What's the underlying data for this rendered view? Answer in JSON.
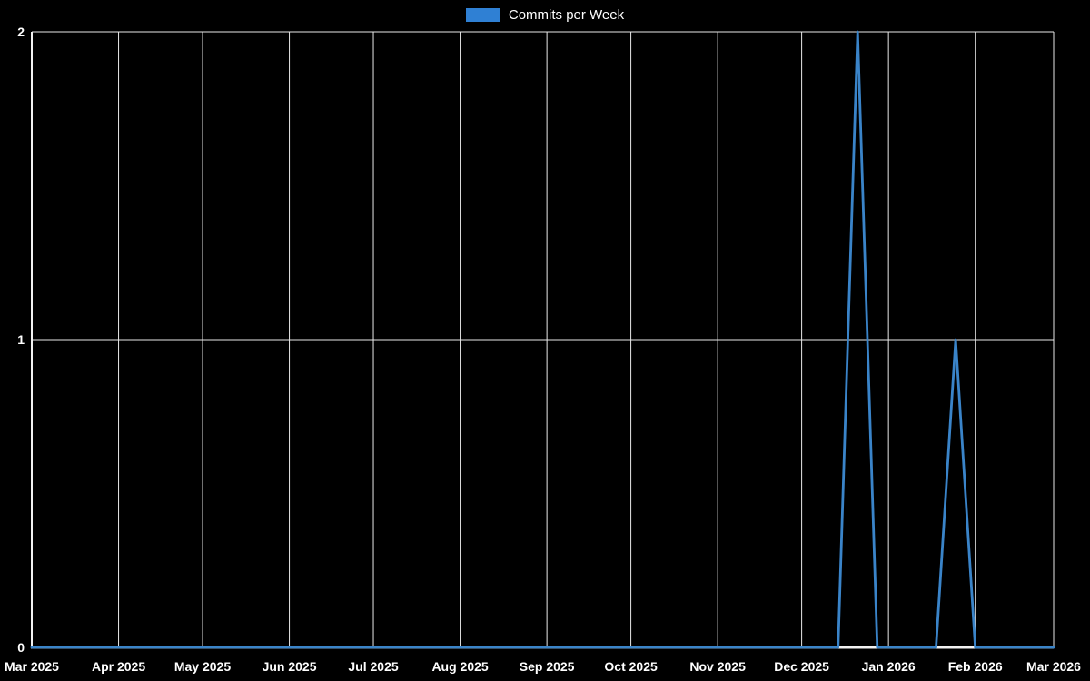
{
  "colors": {
    "background": "#000000",
    "grid": "#e9e9e9",
    "axis": "#f2f2f2",
    "text": "#ffffff",
    "line": "#3a84c9",
    "legend_swatch": "#2f80d4"
  },
  "legend": {
    "label": "Commits per Week"
  },
  "chart_data": {
    "type": "line",
    "title": "Commits per Week",
    "xlabel": "",
    "ylabel": "",
    "x_range": [
      "2025-03-01",
      "2026-03-01"
    ],
    "ylim": [
      0,
      2
    ],
    "y_ticks": [
      0,
      1,
      2
    ],
    "x_tick_labels": [
      "Mar 2025",
      "Apr 2025",
      "May 2025",
      "Jun 2025",
      "Jul 2025",
      "Aug 2025",
      "Sep 2025",
      "Oct 2025",
      "Nov 2025",
      "Dec 2025",
      "Jan 2026",
      "Feb 2026",
      "Mar 2026"
    ],
    "grid": true,
    "legend_position": "top-center",
    "series": [
      {
        "name": "Commits per Week",
        "points": [
          [
            "2025-03-01",
            0
          ],
          [
            "2025-12-14",
            0
          ],
          [
            "2025-12-21",
            2
          ],
          [
            "2025-12-28",
            0
          ],
          [
            "2026-01-18",
            0
          ],
          [
            "2026-01-25",
            1
          ],
          [
            "2026-02-01",
            0
          ],
          [
            "2026-03-01",
            0
          ]
        ]
      }
    ]
  }
}
